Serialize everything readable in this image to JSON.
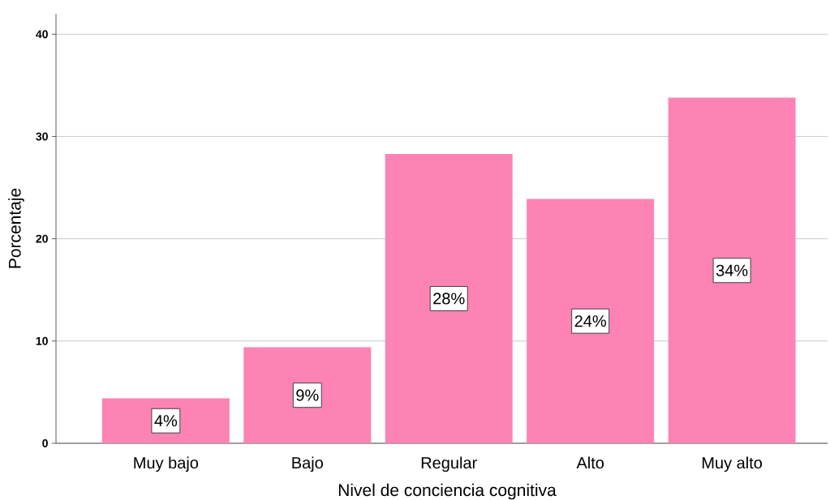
{
  "chart_data": {
    "type": "bar",
    "xlabel": "Nivel de conciencia cognitiva",
    "ylabel": "Porcentaje",
    "categories": [
      "Muy bajo",
      "Bajo",
      "Regular",
      "Alto",
      "Muy alto"
    ],
    "values": [
      4.4,
      9.4,
      28.3,
      23.9,
      33.8
    ],
    "value_labels": [
      "4%",
      "9%",
      "28%",
      "24%",
      "34%"
    ],
    "color": "#fc83b4",
    "ylim": [
      0,
      42
    ],
    "yticks": [
      0,
      10,
      20,
      30,
      40
    ],
    "grid": "y"
  }
}
